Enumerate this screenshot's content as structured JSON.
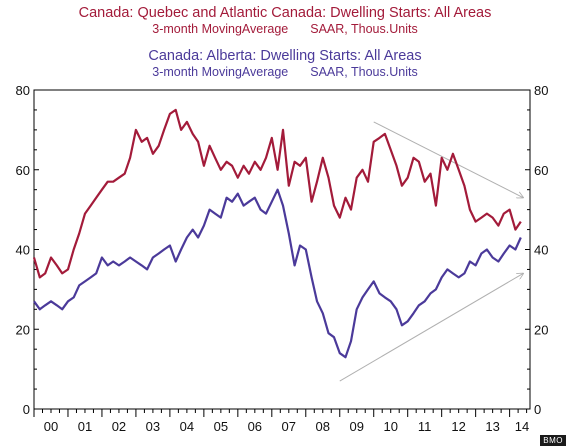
{
  "titles": {
    "series1_title": "Canada: Quebec and Atlantic Canada: Dwelling Starts: All Areas",
    "series1_sub_left": "3-month MovingAverage",
    "series1_sub_right": "SAAR, Thous.Units",
    "series2_title": "Canada: Alberta: Dwelling Starts: All Areas",
    "series2_sub_left": "3-month MovingAverage",
    "series2_sub_right": "SAAR, Thous.Units"
  },
  "credit": "BMO",
  "chart_data": {
    "type": "line",
    "title": "Canada: Quebec and Atlantic Canada: Dwelling Starts: All Areas / Canada: Alberta: Dwelling Starts: All Areas",
    "xlabel": "",
    "ylabel": "SAAR, Thous.Units",
    "xlim": [
      2000.0,
      2014.6
    ],
    "ylim": [
      0,
      80
    ],
    "x_ticks": [
      "00",
      "01",
      "02",
      "03",
      "04",
      "05",
      "06",
      "07",
      "08",
      "09",
      "10",
      "11",
      "12",
      "13",
      "14"
    ],
    "y_ticks": [
      0,
      20,
      40,
      60,
      80
    ],
    "y_axis_both_sides": true,
    "grid": false,
    "colors": {
      "series1": "#a31b3a",
      "series2": "#4b3a9a",
      "trend": "#b0b0b0"
    },
    "series": [
      {
        "name": "Canada: Quebec and Atlantic Canada: Dwelling Starts: All Areas",
        "x": [
          2000.0,
          2000.17,
          2000.33,
          2000.5,
          2000.67,
          2000.83,
          2001.0,
          2001.17,
          2001.33,
          2001.5,
          2001.67,
          2001.83,
          2002.0,
          2002.17,
          2002.33,
          2002.5,
          2002.67,
          2002.83,
          2003.0,
          2003.17,
          2003.33,
          2003.5,
          2003.67,
          2003.83,
          2004.0,
          2004.17,
          2004.33,
          2004.5,
          2004.67,
          2004.83,
          2005.0,
          2005.17,
          2005.33,
          2005.5,
          2005.67,
          2005.83,
          2006.0,
          2006.17,
          2006.33,
          2006.5,
          2006.67,
          2006.83,
          2007.0,
          2007.17,
          2007.33,
          2007.5,
          2007.67,
          2007.83,
          2008.0,
          2008.17,
          2008.33,
          2008.5,
          2008.67,
          2008.83,
          2009.0,
          2009.17,
          2009.33,
          2009.5,
          2009.67,
          2009.83,
          2010.0,
          2010.17,
          2010.33,
          2010.5,
          2010.67,
          2010.83,
          2011.0,
          2011.17,
          2011.33,
          2011.5,
          2011.67,
          2011.83,
          2012.0,
          2012.17,
          2012.33,
          2012.5,
          2012.67,
          2012.83,
          2013.0,
          2013.17,
          2013.33,
          2013.5,
          2013.67,
          2013.83,
          2014.0,
          2014.17,
          2014.33
        ],
        "values": [
          38,
          33,
          34,
          38,
          36,
          34,
          35,
          40,
          44,
          49,
          51,
          53,
          55,
          57,
          57,
          58,
          59,
          63,
          70,
          67,
          68,
          64,
          66,
          70,
          74,
          75,
          70,
          72,
          69,
          67,
          61,
          66,
          63,
          60,
          62,
          61,
          58,
          61,
          59,
          62,
          60,
          63,
          68,
          60,
          70,
          56,
          62,
          61,
          63,
          52,
          57,
          63,
          58,
          51,
          48,
          53,
          50,
          58,
          60,
          57,
          67,
          68,
          69,
          65,
          61,
          56,
          58,
          63,
          62,
          57,
          59,
          51,
          63,
          60,
          64,
          60,
          56,
          50,
          47,
          48,
          49,
          48,
          46,
          49,
          50,
          45,
          47
        ]
      },
      {
        "name": "Canada: Alberta: Dwelling Starts: All Areas",
        "x": [
          2000.0,
          2000.17,
          2000.33,
          2000.5,
          2000.67,
          2000.83,
          2001.0,
          2001.17,
          2001.33,
          2001.5,
          2001.67,
          2001.83,
          2002.0,
          2002.17,
          2002.33,
          2002.5,
          2002.67,
          2002.83,
          2003.0,
          2003.17,
          2003.33,
          2003.5,
          2003.67,
          2003.83,
          2004.0,
          2004.17,
          2004.33,
          2004.5,
          2004.67,
          2004.83,
          2005.0,
          2005.17,
          2005.33,
          2005.5,
          2005.67,
          2005.83,
          2006.0,
          2006.17,
          2006.33,
          2006.5,
          2006.67,
          2006.83,
          2007.0,
          2007.17,
          2007.33,
          2007.5,
          2007.67,
          2007.83,
          2008.0,
          2008.17,
          2008.33,
          2008.5,
          2008.67,
          2008.83,
          2009.0,
          2009.17,
          2009.33,
          2009.5,
          2009.67,
          2009.83,
          2010.0,
          2010.17,
          2010.33,
          2010.5,
          2010.67,
          2010.83,
          2011.0,
          2011.17,
          2011.33,
          2011.5,
          2011.67,
          2011.83,
          2012.0,
          2012.17,
          2012.33,
          2012.5,
          2012.67,
          2012.83,
          2013.0,
          2013.17,
          2013.33,
          2013.5,
          2013.67,
          2013.83,
          2014.0,
          2014.17,
          2014.33
        ],
        "values": [
          27,
          25,
          26,
          27,
          26,
          25,
          27,
          28,
          31,
          32,
          33,
          34,
          38,
          36,
          37,
          36,
          37,
          38,
          37,
          36,
          35,
          38,
          39,
          40,
          41,
          37,
          40,
          43,
          45,
          43,
          46,
          50,
          49,
          48,
          53,
          52,
          54,
          51,
          52,
          53,
          50,
          49,
          52,
          55,
          51,
          44,
          36,
          41,
          40,
          33,
          27,
          24,
          19,
          18,
          14,
          13,
          17,
          25,
          28,
          30,
          32,
          29,
          28,
          27,
          25,
          21,
          22,
          24,
          26,
          27,
          29,
          30,
          33,
          35,
          34,
          33,
          34,
          37,
          36,
          39,
          40,
          38,
          37,
          39,
          41,
          40,
          43
        ]
      }
    ],
    "annotations": [
      {
        "type": "trend-arrow",
        "from": [
          2010.0,
          72
        ],
        "to": [
          2014.4,
          53
        ]
      },
      {
        "type": "trend-arrow",
        "from": [
          2009.0,
          7
        ],
        "to": [
          2014.4,
          34
        ]
      }
    ]
  }
}
